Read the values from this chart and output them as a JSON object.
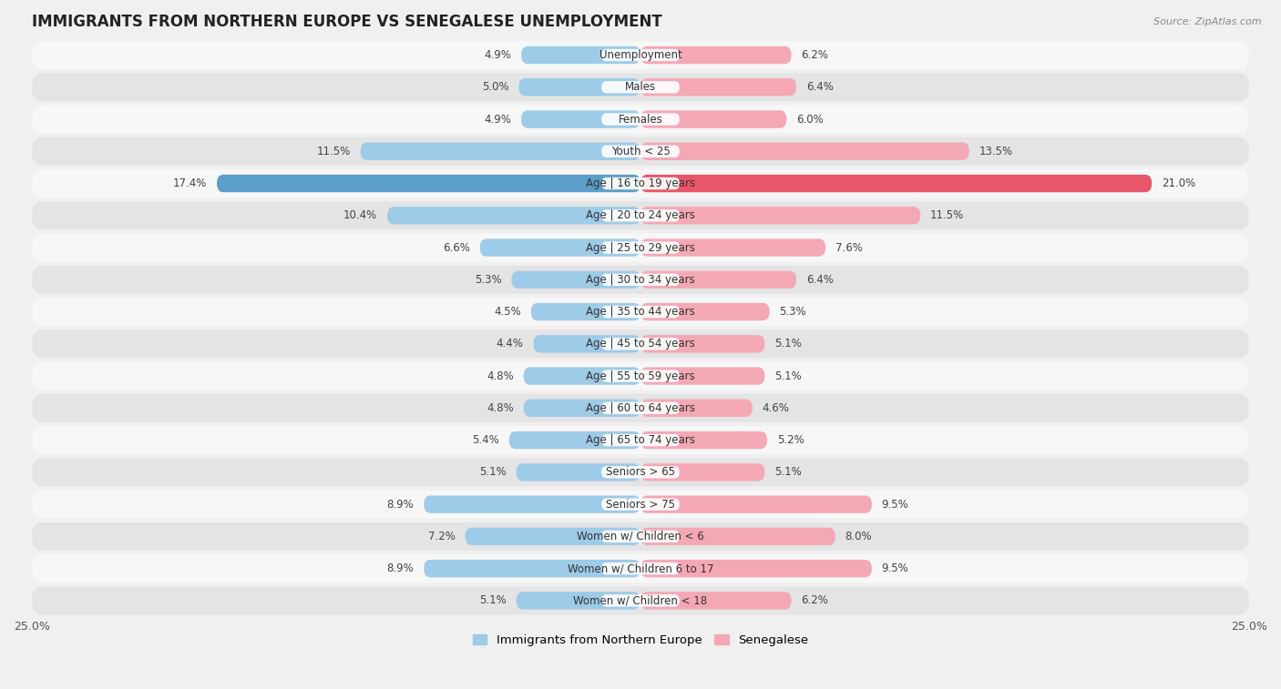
{
  "title": "IMMIGRANTS FROM NORTHERN EUROPE VS SENEGALESE UNEMPLOYMENT",
  "source": "Source: ZipAtlas.com",
  "categories": [
    "Unemployment",
    "Males",
    "Females",
    "Youth < 25",
    "Age | 16 to 19 years",
    "Age | 20 to 24 years",
    "Age | 25 to 29 years",
    "Age | 30 to 34 years",
    "Age | 35 to 44 years",
    "Age | 45 to 54 years",
    "Age | 55 to 59 years",
    "Age | 60 to 64 years",
    "Age | 65 to 74 years",
    "Seniors > 65",
    "Seniors > 75",
    "Women w/ Children < 6",
    "Women w/ Children 6 to 17",
    "Women w/ Children < 18"
  ],
  "left_values": [
    4.9,
    5.0,
    4.9,
    11.5,
    17.4,
    10.4,
    6.6,
    5.3,
    4.5,
    4.4,
    4.8,
    4.8,
    5.4,
    5.1,
    8.9,
    7.2,
    8.9,
    5.1
  ],
  "right_values": [
    6.2,
    6.4,
    6.0,
    13.5,
    21.0,
    11.5,
    7.6,
    6.4,
    5.3,
    5.1,
    5.1,
    4.6,
    5.2,
    5.1,
    9.5,
    8.0,
    9.5,
    6.2
  ],
  "left_color": "#9DCBE8",
  "right_color": "#F4A8B5",
  "left_highlight_color": "#5B9EC9",
  "right_highlight_color": "#E8566A",
  "highlight_row": 4,
  "xlim": 25.0,
  "left_label": "Immigrants from Northern Europe",
  "right_label": "Senegalese",
  "background_color": "#f0f0f0",
  "row_bg_light": "#f7f7f7",
  "row_bg_dark": "#e4e4e4",
  "bar_height": 0.55,
  "title_fontsize": 12,
  "label_fontsize": 8.5,
  "value_fontsize": 8.5
}
